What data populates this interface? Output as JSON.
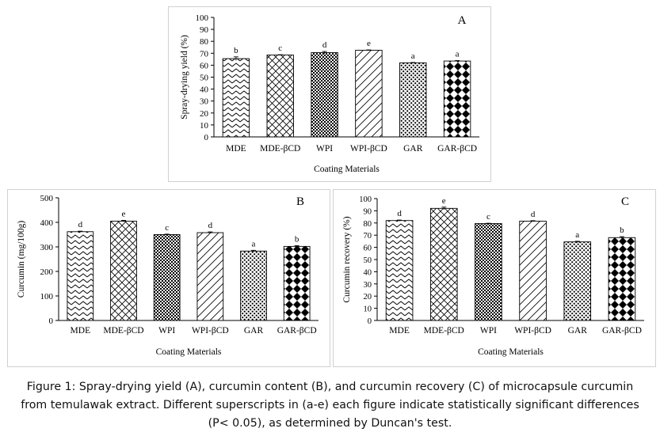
{
  "chart_data": [
    {
      "type": "bar",
      "panel_label": "A",
      "title": "",
      "xlabel": "Coating Materials",
      "ylabel": "Spray-drying yield (%)",
      "categories": [
        "MDE",
        "MDE-βCD",
        "WPI",
        "WPI-βCD",
        "GAR",
        "GAR-βCD"
      ],
      "values": [
        65.5,
        68.5,
        70.5,
        72.5,
        62.0,
        63.5
      ],
      "errors": [
        1.5,
        0.3,
        1.0,
        0.3,
        0.3,
        0.4
      ],
      "superscripts": [
        "b",
        "c",
        "d",
        "e",
        "a",
        "a"
      ],
      "patterns": [
        "zigzag",
        "crosshatch",
        "grid",
        "diag",
        "dots",
        "diamond"
      ],
      "ylim": [
        0,
        100
      ],
      "yticks": [
        0,
        10,
        20,
        30,
        40,
        50,
        60,
        70,
        80,
        90,
        100
      ],
      "grid": false
    },
    {
      "type": "bar",
      "panel_label": "B",
      "title": "",
      "xlabel": "Coating Materials",
      "ylabel": "Curcumin (mg/100g)",
      "categories": [
        "MDE",
        "MDE-βCD",
        "WPI",
        "WPI-βCD",
        "GAR",
        "GAR-βCD"
      ],
      "values": [
        362,
        405,
        350,
        358,
        283,
        302
      ],
      "errors": [
        2,
        3,
        2,
        3,
        3,
        3
      ],
      "superscripts": [
        "d",
        "e",
        "c",
        "d",
        "a",
        "b"
      ],
      "patterns": [
        "zigzag",
        "crosshatch",
        "grid",
        "diag",
        "dots",
        "diamond"
      ],
      "ylim": [
        0,
        500
      ],
      "yticks": [
        0,
        100,
        200,
        300,
        400,
        500
      ],
      "grid": false
    },
    {
      "type": "bar",
      "panel_label": "C",
      "title": "",
      "xlabel": "Coating Materials",
      "ylabel": "Curcumin recovery (%)",
      "categories": [
        "MDE",
        "MDE-βCD",
        "WPI",
        "WPI-βCD",
        "GAR",
        "GAR-βCD"
      ],
      "values": [
        82.0,
        92.0,
        79.5,
        81.5,
        64.5,
        68.0
      ],
      "errors": [
        0.4,
        1.0,
        0.3,
        0.4,
        0.5,
        0.8
      ],
      "superscripts": [
        "d",
        "e",
        "c",
        "d",
        "a",
        "b"
      ],
      "patterns": [
        "zigzag",
        "crosshatch",
        "grid",
        "diag",
        "dots",
        "diamond"
      ],
      "ylim": [
        0,
        100
      ],
      "yticks": [
        0,
        10,
        20,
        30,
        40,
        50,
        60,
        70,
        80,
        90,
        100
      ],
      "grid": false
    }
  ],
  "caption": {
    "line1": "Figure 1: Spray-drying yield (A), curcumin content (B), and curcumin recovery (C) of microcapsule curcumin",
    "line2": "from temulawak extract. Different superscripts in (a-e) each figure indicate statistically significant differences",
    "line3": "(P< 0.05), as determined by Duncan's test."
  },
  "colors": {
    "ink": "#000000",
    "bar_fill": "#ffffff",
    "panel_border": "#d0d0d0"
  }
}
